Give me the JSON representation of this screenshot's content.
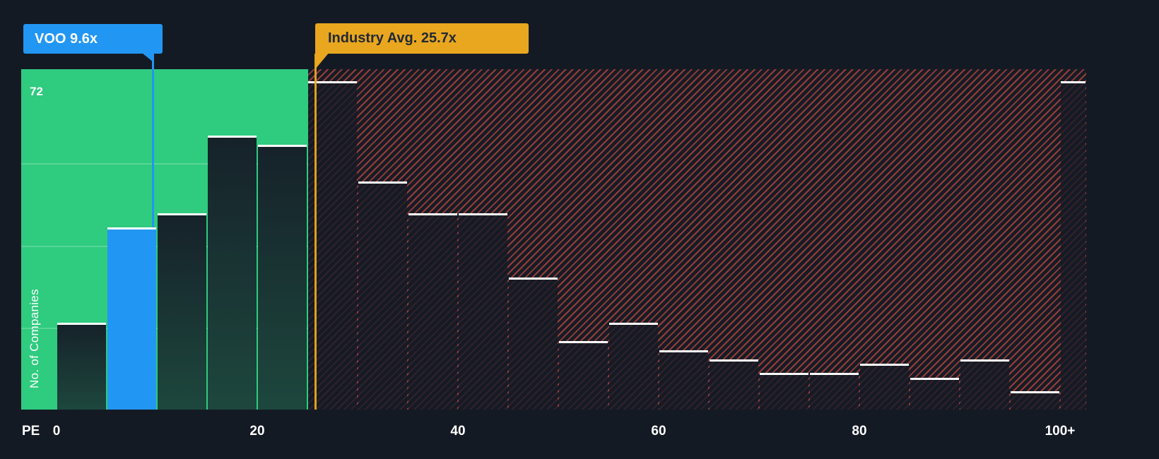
{
  "colors": {
    "page_bg": "#141a24",
    "green_zone": "#2fcb7f",
    "red_zone_bg": "#171b26",
    "red_hatch": "#e45442",
    "voo_blue": "#2296f3",
    "industry_gold": "#e9a71f",
    "white": "#ffffff"
  },
  "tooltips": {
    "voo_label": "VOO 9.6x",
    "industry_label": "Industry Avg. 25.7x"
  },
  "axis": {
    "x_label": "PE",
    "x_ticks": [
      "0",
      "20",
      "40",
      "60",
      "80",
      "100+"
    ],
    "y_label": "No. of Companies",
    "y_max_label": "72"
  },
  "chart_data": {
    "type": "bar",
    "title": "",
    "xlabel": "PE",
    "ylabel": "No. of Companies",
    "ylim": [
      0,
      74
    ],
    "grid": true,
    "legend_position": "none",
    "bins": [
      "0-5",
      "5-10",
      "10-15",
      "15-20",
      "20-25",
      "25-30",
      "30-35",
      "35-40",
      "40-45",
      "45-50",
      "50-55",
      "55-60",
      "60-65",
      "65-70",
      "70-75",
      "75-80",
      "80-85",
      "85-90",
      "90-95",
      "95-100",
      "100+"
    ],
    "values": [
      19,
      40,
      43,
      60,
      58,
      72,
      50,
      43,
      43,
      29,
      15,
      19,
      13,
      11,
      8,
      8,
      10,
      7,
      11,
      4,
      72
    ],
    "highlight": {
      "name": "VOO",
      "pe": 9.6,
      "bin_index": 1,
      "color": "#2296f3"
    },
    "industry_avg": {
      "pe": 25.7,
      "color": "#e9a71f"
    },
    "green_zone_max_pe": 25,
    "green_bin_count": 5,
    "gridline_values": [
      18,
      36,
      54
    ]
  }
}
